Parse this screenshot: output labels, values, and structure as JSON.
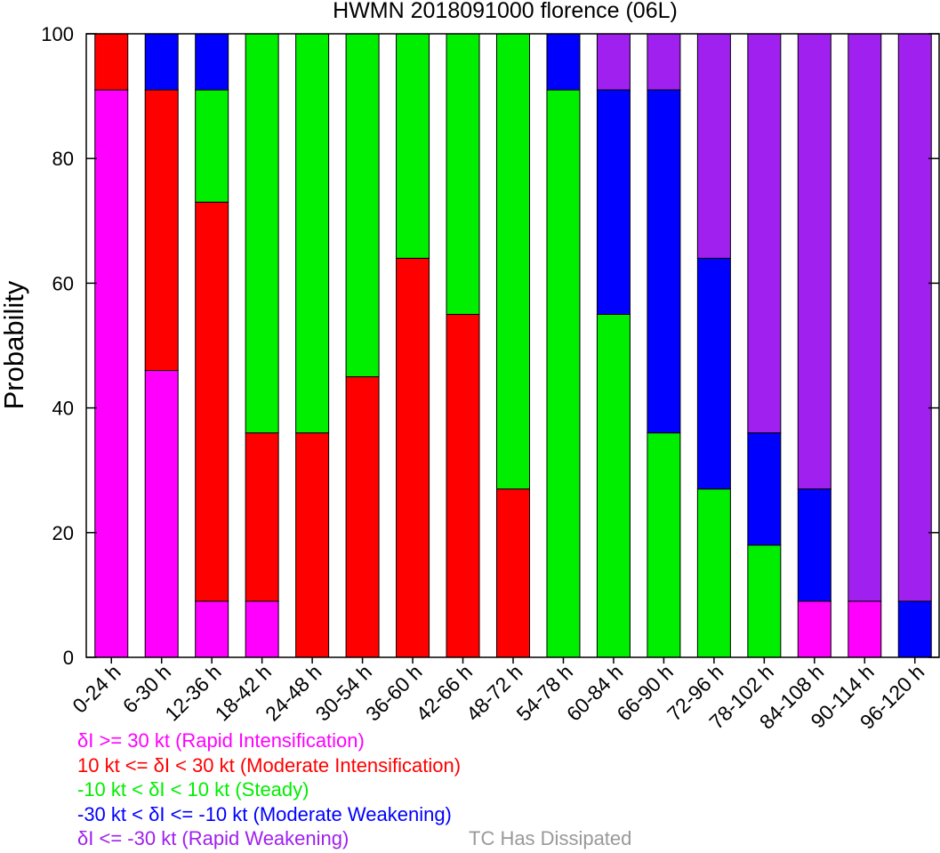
{
  "colors": {
    "rapid_intensification": "#ff00ff",
    "moderate_intensification": "#ff0000",
    "steady": "#00ee00",
    "moderate_weakening": "#0000ff",
    "rapid_weakening": "#a020f0",
    "dissipated": "#999999"
  },
  "chart_data": {
    "type": "bar",
    "stacked": true,
    "title": "HWMN 2018091000 florence (06L)",
    "xlabel": "",
    "ylabel": "Probability",
    "ylim": [
      0,
      100
    ],
    "yticks": [
      0,
      20,
      40,
      60,
      80,
      100
    ],
    "grid": false,
    "categories": [
      "0-24 h",
      "6-30 h",
      "12-36 h",
      "18-42 h",
      "24-48 h",
      "30-54 h",
      "36-60 h",
      "42-66 h",
      "48-72 h",
      "54-78 h",
      "60-84 h",
      "66-90 h",
      "72-96 h",
      "78-102 h",
      "84-108 h",
      "90-114 h",
      "96-120 h"
    ],
    "series": [
      {
        "key": "rapid_intensification",
        "values": [
          91,
          46,
          9,
          9,
          0,
          0,
          0,
          0,
          0,
          0,
          0,
          0,
          0,
          0,
          9,
          9,
          0
        ]
      },
      {
        "key": "moderate_intensification",
        "values": [
          9,
          45,
          64,
          27,
          36,
          45,
          64,
          55,
          27,
          0,
          0,
          0,
          0,
          0,
          0,
          0,
          0
        ]
      },
      {
        "key": "steady",
        "values": [
          0,
          0,
          18,
          64,
          64,
          55,
          36,
          45,
          73,
          91,
          55,
          36,
          27,
          18,
          0,
          0,
          0
        ]
      },
      {
        "key": "moderate_weakening",
        "values": [
          0,
          9,
          9,
          0,
          0,
          0,
          0,
          0,
          0,
          9,
          36,
          55,
          37,
          18,
          18,
          0,
          9
        ]
      },
      {
        "key": "rapid_weakening",
        "values": [
          0,
          0,
          0,
          0,
          0,
          0,
          0,
          0,
          0,
          0,
          9,
          9,
          36,
          64,
          73,
          91,
          91
        ]
      }
    ]
  },
  "legend": [
    {
      "key": "rapid_intensification",
      "text": "δI >= 30 kt (Rapid Intensification)"
    },
    {
      "key": "moderate_intensification",
      "text": "10 kt <= δI < 30 kt (Moderate Intensification)"
    },
    {
      "key": "steady",
      "text": "-10 kt < δI < 10 kt (Steady)"
    },
    {
      "key": "moderate_weakening",
      "text": "-30 kt < δI <= -10 kt (Moderate Weakening)"
    },
    {
      "key": "rapid_weakening",
      "text": "δI <= -30 kt (Rapid Weakening)"
    }
  ],
  "dissipated_label": "TC Has Dissipated"
}
